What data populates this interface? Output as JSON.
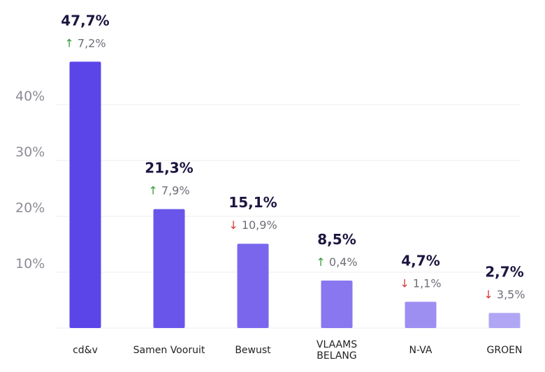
{
  "chart_data": {
    "type": "bar",
    "categories": [
      "cd&v",
      "Samen Vooruit",
      "Bewust",
      "VLAAMS BELANG",
      "N-VA",
      "GROEN"
    ],
    "category_lines": [
      [
        "cd&v"
      ],
      [
        "Samen Vooruit"
      ],
      [
        "Bewust"
      ],
      [
        "VLAAMS",
        "BELANG"
      ],
      [
        "N-VA"
      ],
      [
        "GROEN"
      ]
    ],
    "values": [
      47.7,
      21.3,
      15.1,
      8.5,
      4.7,
      2.7
    ],
    "value_labels": [
      "47,7%",
      "21,3%",
      "15,1%",
      "8,5%",
      "4,7%",
      "2,7%"
    ],
    "changes": [
      {
        "direction": "up",
        "arrow": "↑",
        "label": "7,2%"
      },
      {
        "direction": "up",
        "arrow": "↑",
        "label": "7,9%"
      },
      {
        "direction": "down",
        "arrow": "↓",
        "label": "10,9%"
      },
      {
        "direction": "up",
        "arrow": "↑",
        "label": "0,4%"
      },
      {
        "direction": "down",
        "arrow": "↓",
        "label": "1,1%"
      },
      {
        "direction": "down",
        "arrow": "↓",
        "label": "3,5%"
      }
    ],
    "bar_colors": [
      "#5b45e9",
      "#6a55eb",
      "#7966ed",
      "#8877ef",
      "#9d8ff2",
      "#b0a6f4"
    ],
    "y_ticks": [
      10,
      20,
      30,
      40
    ],
    "y_tick_labels": [
      "10%",
      "20%",
      "30%",
      "40%"
    ],
    "ylim": [
      0,
      50
    ],
    "grid": true,
    "title": "",
    "xlabel": "",
    "ylabel": ""
  }
}
